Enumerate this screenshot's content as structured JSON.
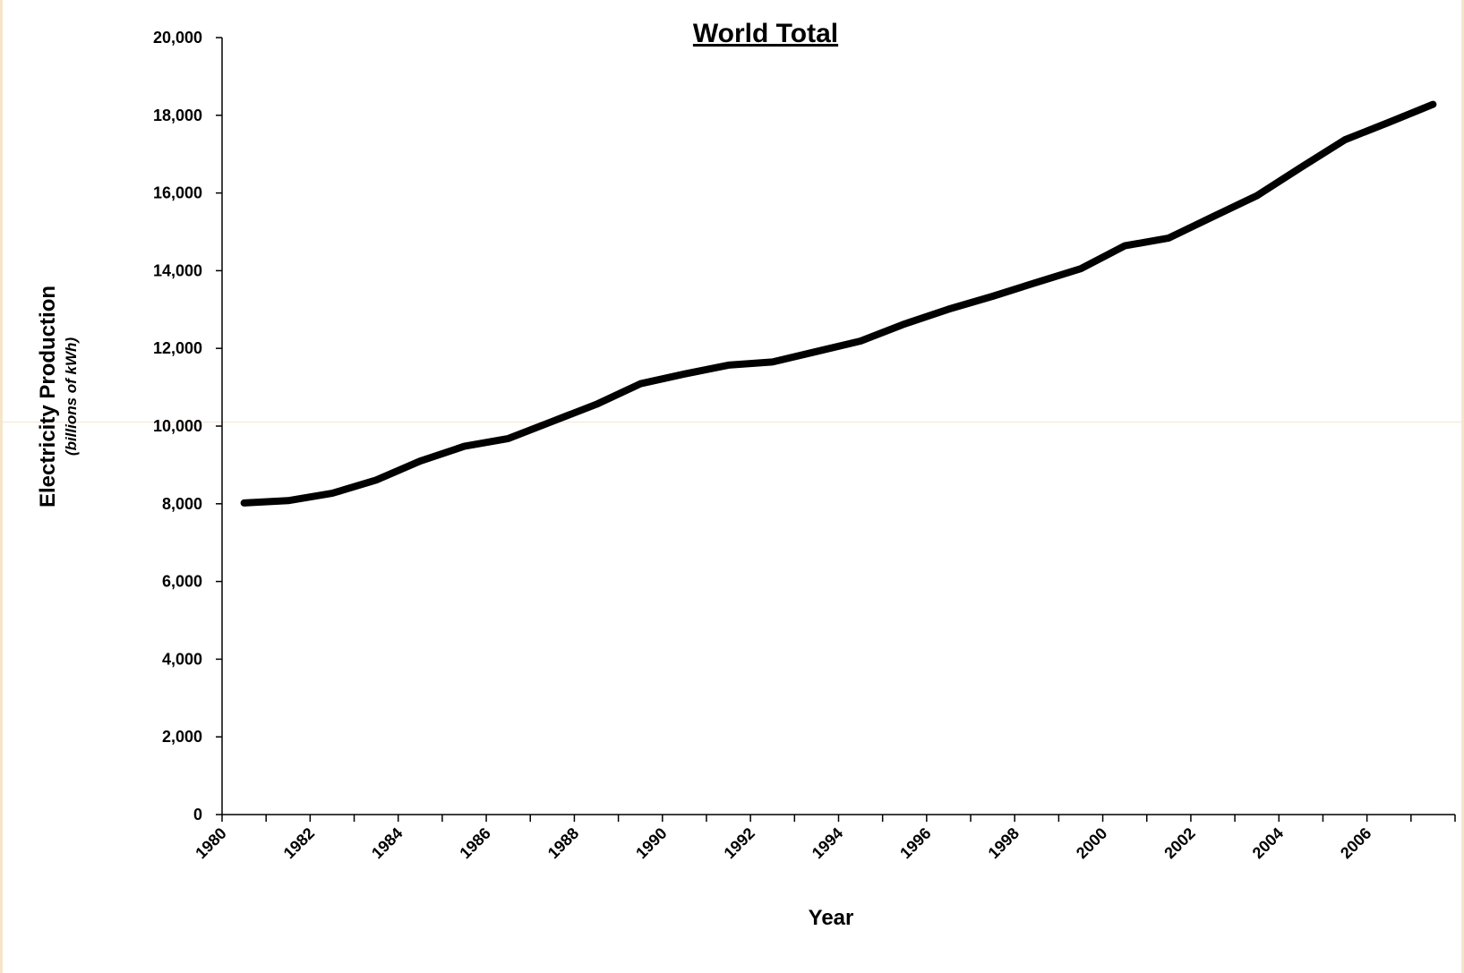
{
  "chart_data": {
    "type": "line",
    "title": "World Total",
    "xlabel": "Year",
    "ylabel": "Electricity Production",
    "ylabel_unit": "(billions of kWh)",
    "ylim": [
      0,
      20000
    ],
    "y_ticks": [
      0,
      2000,
      4000,
      6000,
      8000,
      10000,
      12000,
      14000,
      16000,
      18000,
      20000
    ],
    "y_tick_labels": [
      "0",
      "2,000",
      "4,000",
      "6,000",
      "8,000",
      "10,000",
      "12,000",
      "14,000",
      "16,000",
      "18,000",
      "20,000"
    ],
    "x_tick_labels": [
      "1980",
      "1982",
      "1984",
      "1986",
      "1988",
      "1990",
      "1992",
      "1994",
      "1996",
      "1998",
      "2000",
      "2002",
      "2004",
      "2006"
    ],
    "grid": false,
    "legend": "none",
    "line_color": "#000000",
    "x": [
      1980,
      1981,
      1982,
      1983,
      1984,
      1985,
      1986,
      1987,
      1988,
      1989,
      1990,
      1991,
      1992,
      1993,
      1994,
      1995,
      1996,
      1997,
      1998,
      1999,
      2000,
      2001,
      2002,
      2003,
      2004,
      2005,
      2006,
      2007
    ],
    "series": [
      {
        "values": [
          8020,
          8080,
          8270,
          8610,
          9100,
          9480,
          9680,
          10120,
          10560,
          11090,
          11340,
          11570,
          11650,
          11920,
          12190,
          12630,
          13010,
          13340,
          13700,
          14050,
          14640,
          14840,
          15390,
          15930,
          16660,
          17370,
          17820,
          18280
        ]
      }
    ]
  }
}
